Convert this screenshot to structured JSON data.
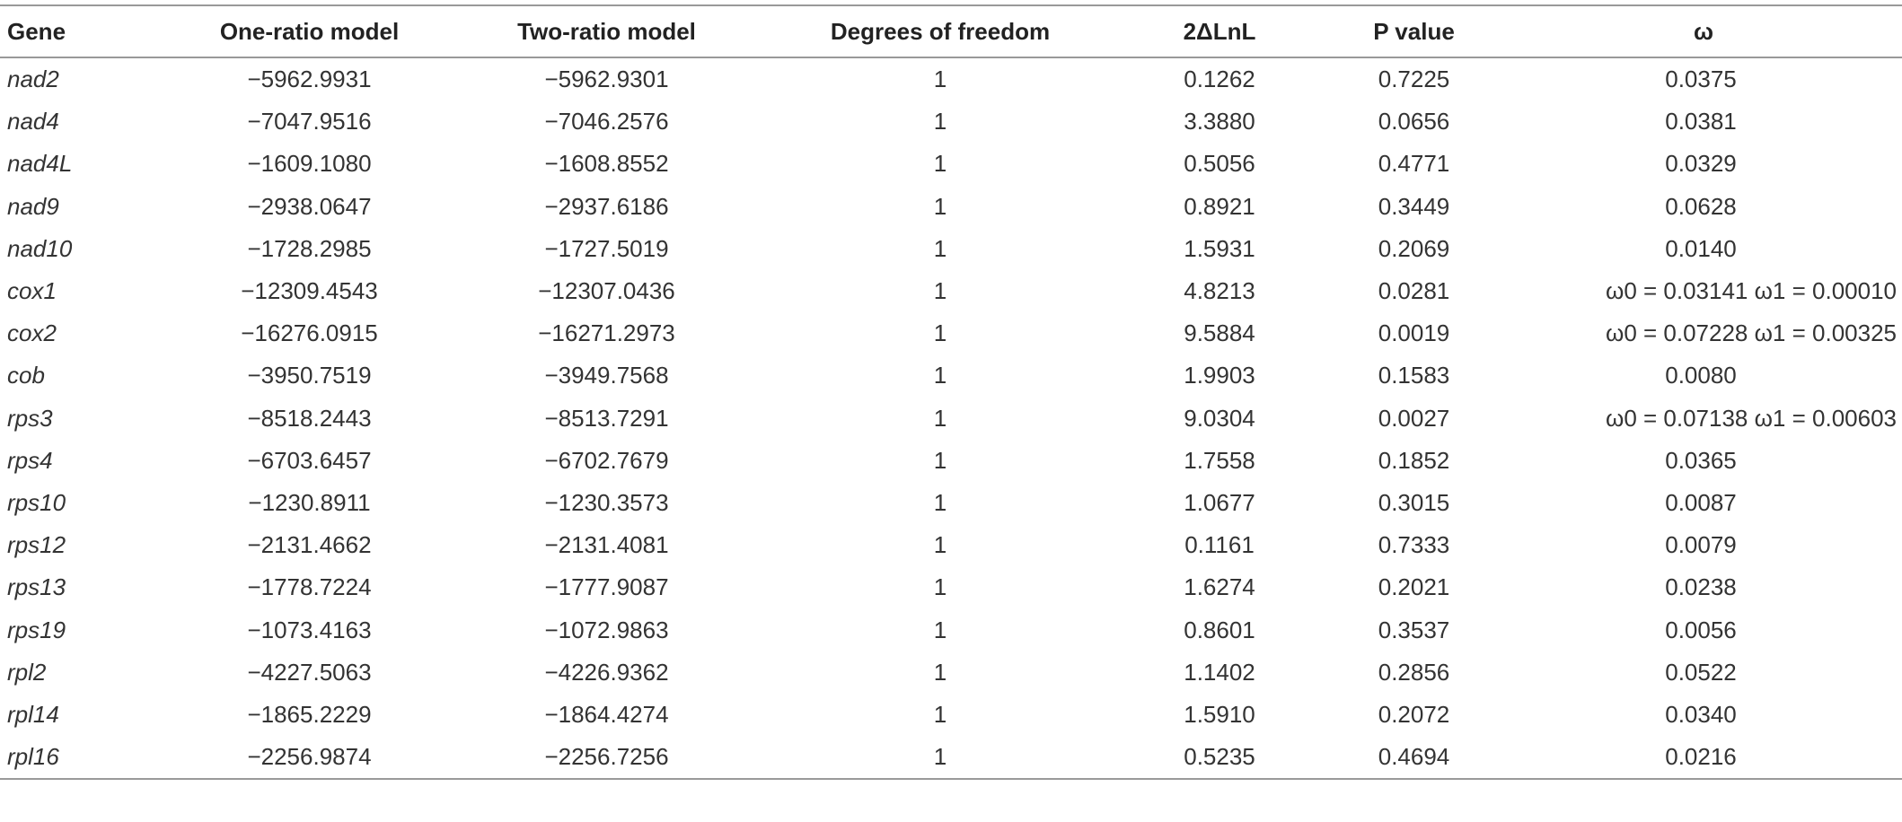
{
  "table": {
    "header": [
      "Gene",
      "One-ratio model",
      "Two-ratio model",
      "Degrees of freedom",
      "2ΔLnL",
      "P value",
      "ω"
    ],
    "rows": [
      [
        "nad2",
        "−5962.9931",
        "−5962.9301",
        "1",
        "0.1262",
        "0.7225",
        "0.0375"
      ],
      [
        "nad4",
        "−7047.9516",
        "−7046.2576",
        "1",
        "3.3880",
        "0.0656",
        "0.0381"
      ],
      [
        "nad4L",
        "−1609.1080",
        "−1608.8552",
        "1",
        "0.5056",
        "0.4771",
        "0.0329"
      ],
      [
        "nad9",
        "−2938.0647",
        "−2937.6186",
        "1",
        "0.8921",
        "0.3449",
        "0.0628"
      ],
      [
        "nad10",
        "−1728.2985",
        "−1727.5019",
        "1",
        "1.5931",
        "0.2069",
        "0.0140"
      ],
      [
        "cox1",
        "−12309.4543",
        "−12307.0436",
        "1",
        "4.8213",
        "0.0281",
        "ω0 = 0.03141 ω1 = 0.00010"
      ],
      [
        "cox2",
        "−16276.0915",
        "−16271.2973",
        "1",
        "9.5884",
        "0.0019",
        "ω0 = 0.07228 ω1 = 0.00325"
      ],
      [
        "cob",
        "−3950.7519",
        "−3949.7568",
        "1",
        "1.9903",
        "0.1583",
        "0.0080"
      ],
      [
        "rps3",
        "−8518.2443",
        "−8513.7291",
        "1",
        "9.0304",
        "0.0027",
        "ω0 = 0.07138 ω1 = 0.00603"
      ],
      [
        "rps4",
        "−6703.6457",
        "−6702.7679",
        "1",
        "1.7558",
        "0.1852",
        "0.0365"
      ],
      [
        "rps10",
        "−1230.8911",
        "−1230.3573",
        "1",
        "1.0677",
        "0.3015",
        "0.0087"
      ],
      [
        "rps12",
        "−2131.4662",
        "−2131.4081",
        "1",
        "0.1161",
        "0.7333",
        "0.0079"
      ],
      [
        "rps13",
        "−1778.7224",
        "−1777.9087",
        "1",
        "1.6274",
        "0.2021",
        "0.0238"
      ],
      [
        "rps19",
        "−1073.4163",
        "−1072.9863",
        "1",
        "0.8601",
        "0.3537",
        "0.0056"
      ],
      [
        "rpl2",
        "−4227.5063",
        "−4226.9362",
        "1",
        "1.1402",
        "0.2856",
        "0.0522"
      ],
      [
        "rpl14",
        "−1865.2229",
        "−1864.4274",
        "1",
        "1.5910",
        "0.2072",
        "0.0340"
      ],
      [
        "rpl16",
        "−2256.9874",
        "−2256.7256",
        "1",
        "0.5235",
        "0.4694",
        "0.0216"
      ]
    ]
  }
}
